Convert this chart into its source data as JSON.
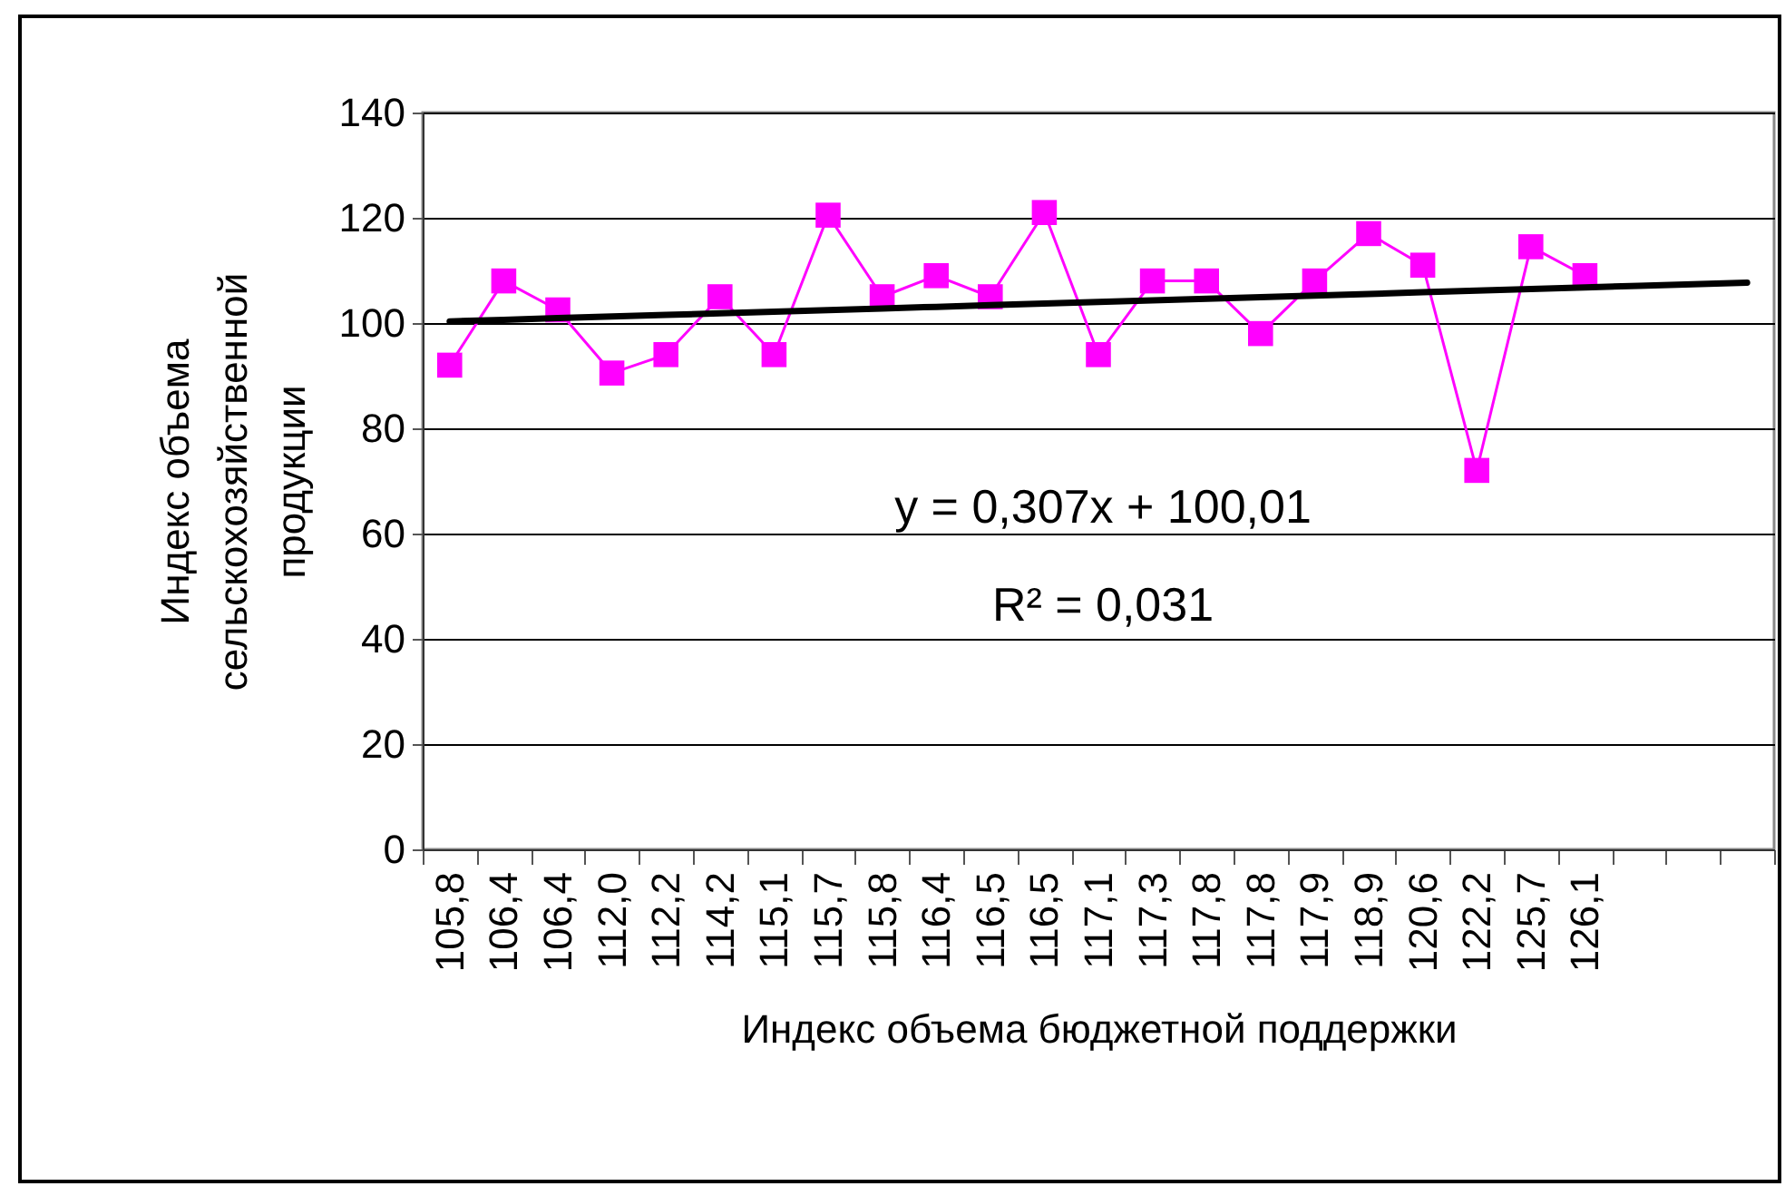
{
  "chart_data": {
    "type": "line",
    "xlabel": "Индекс объема бюджетной поддержки",
    "ylabel": "Индекс объема сельскохозяйственной продукции",
    "categories": [
      "105,8",
      "106,4",
      "106,4",
      "112,0",
      "112,2",
      "114,2",
      "115,1",
      "115,7",
      "115,8",
      "116,4",
      "116,5",
      "116,5",
      "117,1",
      "117,3",
      "117,8",
      "117,8",
      "117,9",
      "118,9",
      "120,6",
      "122,2",
      "125,7",
      "126,1",
      null,
      null,
      null
    ],
    "series": [
      {
        "color": "#ff00ff",
        "marker": "square",
        "values": [
          92,
          108,
          102.5,
          90.5,
          94,
          105,
          94,
          120.5,
          105,
          109,
          105,
          121,
          94,
          108,
          108,
          98,
          108,
          117,
          111,
          72,
          114.5,
          109,
          null,
          null,
          null
        ]
      },
      {
        "type": "line",
        "color": "#000000",
        "marker": "none",
        "values": [
          100.317,
          100.624,
          100.931,
          101.238,
          101.545,
          101.852,
          102.159,
          102.466,
          102.773,
          103.08,
          103.387,
          103.694,
          104.001,
          104.308,
          104.615,
          104.922,
          105.229,
          105.536,
          105.843,
          106.15,
          106.457,
          106.764,
          107.071,
          107.378,
          107.685
        ]
      }
    ],
    "ylim": [
      0,
      140
    ],
    "yticks": [
      0,
      20,
      40,
      60,
      80,
      100,
      120,
      140
    ],
    "grid": "y",
    "annotations": [
      "y = 0,307x + 100,01",
      "R² = 0,031"
    ]
  }
}
